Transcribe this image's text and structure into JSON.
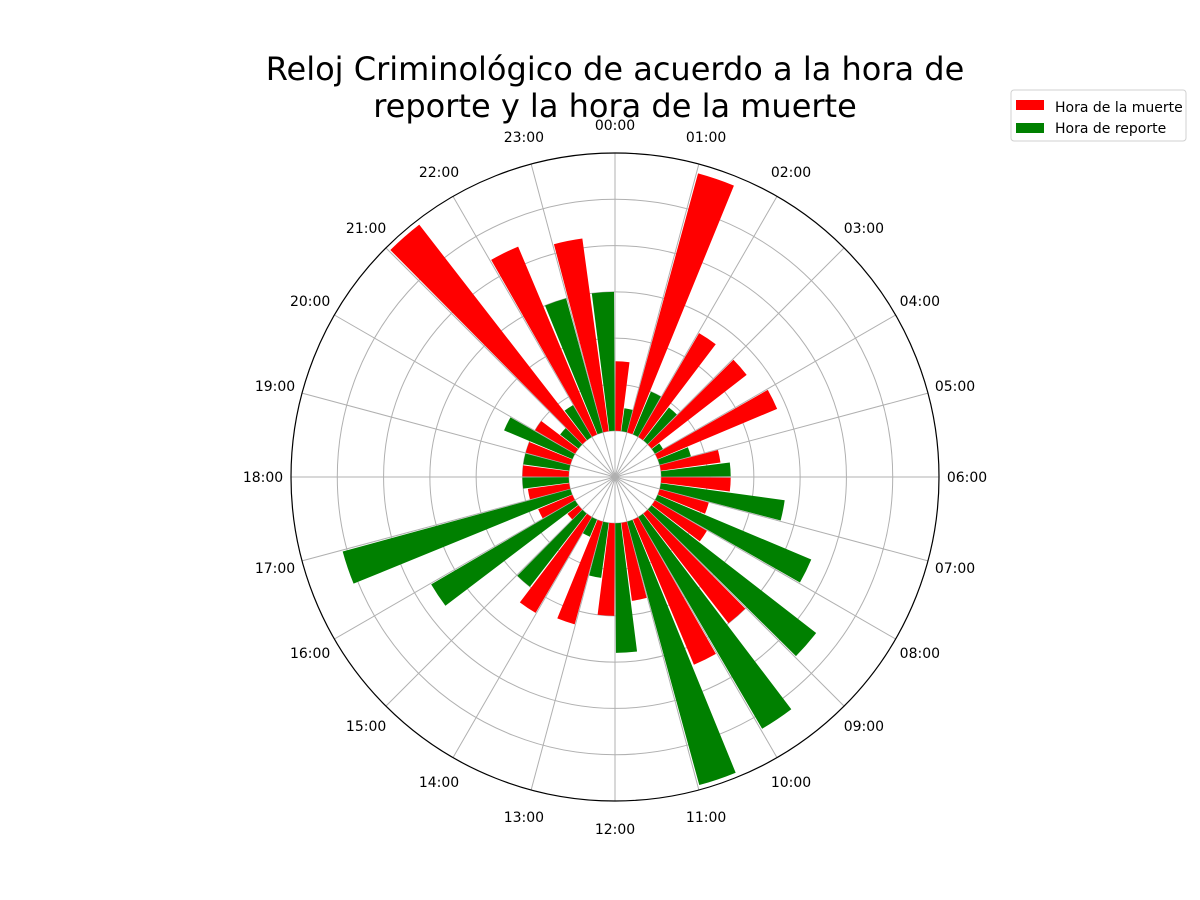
{
  "chart_data": {
    "type": "bar",
    "subtype": "polar",
    "title": "Reloj Criminológico de acuerdo a la hora de reporte y la hora de la muerte",
    "title_lines": [
      "Reloj Criminológico de acuerdo a la hora de",
      "reporte y la hora de la muerte"
    ],
    "categories": [
      "00:00",
      "01:00",
      "02:00",
      "03:00",
      "04:00",
      "05:00",
      "06:00",
      "07:00",
      "08:00",
      "09:00",
      "10:00",
      "11:00",
      "12:00",
      "13:00",
      "14:00",
      "15:00",
      "16:00",
      "17:00",
      "18:00",
      "19:00",
      "20:00",
      "21:00",
      "22:00",
      "23:00"
    ],
    "series": [
      {
        "name": "Hora de la muerte",
        "color": "#ff0000",
        "values": [
          1.5,
          5.8,
          2.6,
          2.6,
          2.8,
          1.3,
          1.5,
          1.1,
          1.3,
          3.0,
          3.4,
          1.7,
          2.0,
          2.3,
          2.4,
          0.3,
          0.8,
          0.9,
          1.0,
          1.0,
          1.0,
          5.9,
          4.4,
          4.2
        ]
      },
      {
        "name": "Hora de reporte",
        "color": "#008000",
        "values": [
          3.0,
          0.5,
          1.0,
          0.9,
          0.2,
          0.7,
          1.5,
          2.7,
          3.6,
          4.5,
          5.3,
          5.9,
          2.8,
          1.2,
          0.4,
          2.0,
          3.6,
          5.1,
          1.0,
          1.0,
          1.6,
          0.5,
          0.8,
          3.0
        ]
      }
    ],
    "rlim": [
      -1,
      6
    ],
    "grid": true,
    "legend_position": "top-right",
    "direction": "clockwise",
    "zero_location": "top"
  }
}
